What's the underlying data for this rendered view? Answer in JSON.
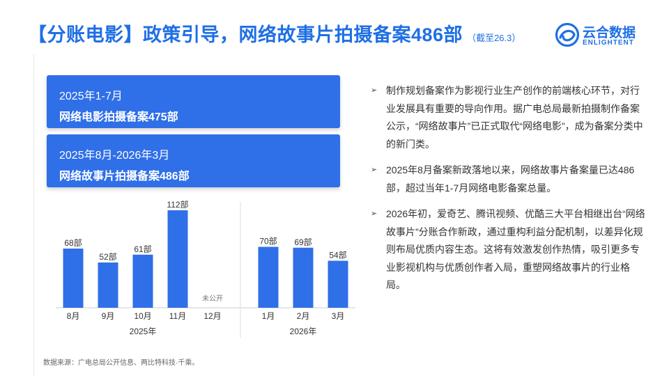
{
  "header": {
    "title": "【分账电影】政策引导，网络故事片拍摄备案486部",
    "subtitle": "（截至26.3）"
  },
  "logo": {
    "cn": "云合数据",
    "en": "ENLIGHTENT"
  },
  "cards": [
    {
      "period": "2025年1-7月",
      "count": "网络电影拍摄备案475部"
    },
    {
      "period": "2025年8月-2026年3月",
      "count": "网络故事片拍摄备案486部"
    }
  ],
  "bullets": [
    "制作规划备案作为影视行业生产创作的前端核心环节，对行业发展具有重要的导向作用。据广电总局最新拍摄制作备案公示，“网络故事片”已正式取代“网络电影”，成为备案分类中的新门类。",
    "2025年8月备案新政落地以来，网络故事片备案量已达486部，超过当年1-7月网络电影备案总量。",
    "2026年初，爱奇艺、腾讯视频、优酷三大平台相继出台“网络故事片”分账合作新政，通过重构利益分配机制，以差异化规则布局优质内容生态。这将有效激发创作热情，吸引更多专业影视机构与优质创作者入局，重塑网络故事片的行业格局。"
  ],
  "source": "数据来源：广电总局公开信息、两比特科技·千乘。",
  "colors": {
    "accent": "#1f6fe5",
    "bar": "#2f6fe8",
    "card": "#2f6fe8"
  },
  "chart_data": {
    "type": "bar",
    "categories": [
      "8月",
      "9月",
      "10月",
      "11月",
      "12月",
      "1月",
      "2月",
      "3月"
    ],
    "values": [
      68,
      52,
      61,
      112,
      null,
      70,
      69,
      54
    ],
    "data_labels": [
      "68部",
      "52部",
      "61部",
      "112部",
      "未公开",
      "70部",
      "69部",
      "54部"
    ],
    "groups": [
      {
        "label": "2025年",
        "count": 5
      },
      {
        "label": "2026年",
        "count": 3
      }
    ],
    "ylim": [
      0,
      112
    ],
    "grid": false
  }
}
